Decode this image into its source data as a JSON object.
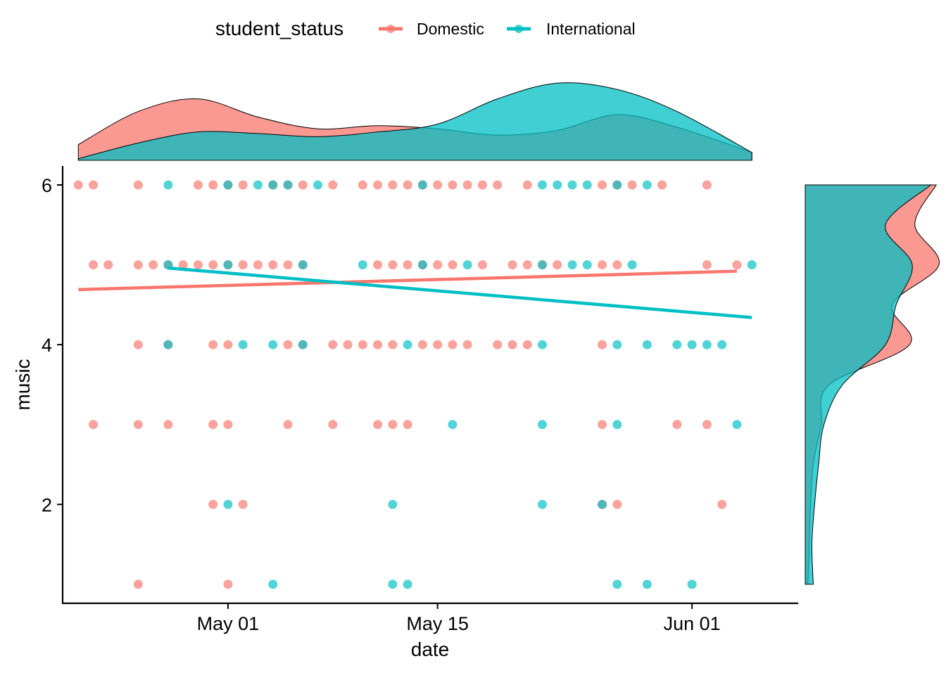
{
  "chart_data": {
    "type": "scatter",
    "xlabel": "date",
    "ylabel": "music",
    "x_ticks": [
      "May 01",
      "May 15",
      "Jun 01"
    ],
    "x_tick_dates": [
      "2021-05-01",
      "2021-05-15",
      "2021-06-01"
    ],
    "xlim": [
      "2021-04-20",
      "2021-06-08"
    ],
    "y_ticks": [
      2,
      4,
      6
    ],
    "ylim": [
      0.75,
      6.25
    ],
    "grid": false,
    "legend": {
      "title": "student_status",
      "position": "top",
      "entries": [
        "Domestic",
        "International"
      ]
    },
    "colors": {
      "Domestic": "#F8766D",
      "International": "#00BFC4"
    },
    "series": [
      {
        "name": "Domestic",
        "points": [
          [
            "2021-04-21",
            6
          ],
          [
            "2021-04-22",
            6
          ],
          [
            "2021-04-25",
            6
          ],
          [
            "2021-04-29",
            6
          ],
          [
            "2021-04-30",
            6
          ],
          [
            "2021-05-01",
            6
          ],
          [
            "2021-05-02",
            6
          ],
          [
            "2021-05-04",
            6
          ],
          [
            "2021-05-05",
            6
          ],
          [
            "2021-05-06",
            6
          ],
          [
            "2021-05-08",
            6
          ],
          [
            "2021-05-10",
            6
          ],
          [
            "2021-05-11",
            6
          ],
          [
            "2021-05-12",
            6
          ],
          [
            "2021-05-13",
            6
          ],
          [
            "2021-05-14",
            6
          ],
          [
            "2021-05-15",
            6
          ],
          [
            "2021-05-16",
            6
          ],
          [
            "2021-05-17",
            6
          ],
          [
            "2021-05-18",
            6
          ],
          [
            "2021-05-19",
            6
          ],
          [
            "2021-05-21",
            6
          ],
          [
            "2021-05-26",
            6
          ],
          [
            "2021-05-27",
            6
          ],
          [
            "2021-05-28",
            6
          ],
          [
            "2021-05-30",
            6
          ],
          [
            "2021-06-02",
            6
          ],
          [
            "2021-04-22",
            5
          ],
          [
            "2021-04-23",
            5
          ],
          [
            "2021-04-25",
            5
          ],
          [
            "2021-04-26",
            5
          ],
          [
            "2021-04-27",
            5
          ],
          [
            "2021-04-28",
            5
          ],
          [
            "2021-04-29",
            5
          ],
          [
            "2021-04-30",
            5
          ],
          [
            "2021-05-01",
            5
          ],
          [
            "2021-05-02",
            5
          ],
          [
            "2021-05-03",
            5
          ],
          [
            "2021-05-04",
            5
          ],
          [
            "2021-05-05",
            5
          ],
          [
            "2021-05-06",
            5
          ],
          [
            "2021-05-11",
            5
          ],
          [
            "2021-05-12",
            5
          ],
          [
            "2021-05-13",
            5
          ],
          [
            "2021-05-14",
            5
          ],
          [
            "2021-05-15",
            5
          ],
          [
            "2021-05-16",
            5
          ],
          [
            "2021-05-18",
            5
          ],
          [
            "2021-05-20",
            5
          ],
          [
            "2021-05-21",
            5
          ],
          [
            "2021-05-22",
            5
          ],
          [
            "2021-05-23",
            5
          ],
          [
            "2021-05-26",
            5
          ],
          [
            "2021-05-27",
            5
          ],
          [
            "2021-06-02",
            5
          ],
          [
            "2021-06-04",
            5
          ],
          [
            "2021-04-25",
            4
          ],
          [
            "2021-04-27",
            4
          ],
          [
            "2021-04-30",
            4
          ],
          [
            "2021-05-01",
            4
          ],
          [
            "2021-05-05",
            4
          ],
          [
            "2021-05-06",
            4
          ],
          [
            "2021-05-08",
            4
          ],
          [
            "2021-05-09",
            4
          ],
          [
            "2021-05-10",
            4
          ],
          [
            "2021-05-11",
            4
          ],
          [
            "2021-05-12",
            4
          ],
          [
            "2021-05-14",
            4
          ],
          [
            "2021-05-15",
            4
          ],
          [
            "2021-05-16",
            4
          ],
          [
            "2021-05-17",
            4
          ],
          [
            "2021-05-19",
            4
          ],
          [
            "2021-05-20",
            4
          ],
          [
            "2021-05-21",
            4
          ],
          [
            "2021-05-26",
            4
          ],
          [
            "2021-04-22",
            3
          ],
          [
            "2021-04-25",
            3
          ],
          [
            "2021-04-27",
            3
          ],
          [
            "2021-04-30",
            3
          ],
          [
            "2021-05-01",
            3
          ],
          [
            "2021-05-05",
            3
          ],
          [
            "2021-05-08",
            3
          ],
          [
            "2021-05-11",
            3
          ],
          [
            "2021-05-12",
            3
          ],
          [
            "2021-05-13",
            3
          ],
          [
            "2021-05-26",
            3
          ],
          [
            "2021-05-31",
            3
          ],
          [
            "2021-06-02",
            3
          ],
          [
            "2021-04-30",
            2
          ],
          [
            "2021-05-02",
            2
          ],
          [
            "2021-05-26",
            2
          ],
          [
            "2021-05-27",
            2
          ],
          [
            "2021-06-03",
            2
          ],
          [
            "2021-04-25",
            1
          ],
          [
            "2021-05-01",
            1
          ]
        ]
      },
      {
        "name": "International",
        "points": [
          [
            "2021-04-27",
            6
          ],
          [
            "2021-05-01",
            6
          ],
          [
            "2021-05-03",
            6
          ],
          [
            "2021-05-04",
            6
          ],
          [
            "2021-05-05",
            6
          ],
          [
            "2021-05-07",
            6
          ],
          [
            "2021-05-14",
            6
          ],
          [
            "2021-05-22",
            6
          ],
          [
            "2021-05-23",
            6
          ],
          [
            "2021-05-24",
            6
          ],
          [
            "2021-05-25",
            6
          ],
          [
            "2021-05-27",
            6
          ],
          [
            "2021-05-29",
            6
          ],
          [
            "2021-04-27",
            5
          ],
          [
            "2021-05-01",
            5
          ],
          [
            "2021-05-06",
            5
          ],
          [
            "2021-05-10",
            5
          ],
          [
            "2021-05-14",
            5
          ],
          [
            "2021-05-17",
            5
          ],
          [
            "2021-05-22",
            5
          ],
          [
            "2021-05-24",
            5
          ],
          [
            "2021-05-25",
            5
          ],
          [
            "2021-05-28",
            5
          ],
          [
            "2021-06-05",
            5
          ],
          [
            "2021-04-27",
            4
          ],
          [
            "2021-05-02",
            4
          ],
          [
            "2021-05-04",
            4
          ],
          [
            "2021-05-06",
            4
          ],
          [
            "2021-05-13",
            4
          ],
          [
            "2021-05-22",
            4
          ],
          [
            "2021-05-27",
            4
          ],
          [
            "2021-05-29",
            4
          ],
          [
            "2021-05-31",
            4
          ],
          [
            "2021-06-01",
            4
          ],
          [
            "2021-06-02",
            4
          ],
          [
            "2021-06-03",
            4
          ],
          [
            "2021-05-16",
            3
          ],
          [
            "2021-05-22",
            3
          ],
          [
            "2021-05-27",
            3
          ],
          [
            "2021-06-04",
            3
          ],
          [
            "2021-05-01",
            2
          ],
          [
            "2021-05-12",
            2
          ],
          [
            "2021-05-22",
            2
          ],
          [
            "2021-05-26",
            2
          ],
          [
            "2021-05-04",
            1
          ],
          [
            "2021-05-12",
            1
          ],
          [
            "2021-05-13",
            1
          ],
          [
            "2021-05-27",
            1
          ],
          [
            "2021-05-29",
            1
          ],
          [
            "2021-06-01",
            1
          ]
        ]
      }
    ],
    "trend_lines": [
      {
        "name": "Domestic",
        "from": [
          "2021-04-21",
          4.69
        ],
        "to": [
          "2021-06-04",
          4.92
        ]
      },
      {
        "name": "International",
        "from": [
          "2021-04-27",
          4.96
        ],
        "to": [
          "2021-06-05",
          4.34
        ]
      }
    ],
    "marginal_x_density": {
      "x": [
        "2021-04-21",
        "2021-04-25",
        "2021-04-29",
        "2021-05-03",
        "2021-05-07",
        "2021-05-11",
        "2021-05-15",
        "2021-05-19",
        "2021-05-23",
        "2021-05-27",
        "2021-05-31",
        "2021-06-05"
      ],
      "Domestic": [
        0.2,
        0.62,
        0.78,
        0.55,
        0.4,
        0.44,
        0.4,
        0.32,
        0.38,
        0.58,
        0.42,
        0.1
      ],
      "International": [
        0.02,
        0.22,
        0.36,
        0.34,
        0.3,
        0.36,
        0.46,
        0.78,
        0.98,
        0.9,
        0.62,
        0.1
      ]
    },
    "marginal_y_density": {
      "y": [
        1,
        1.5,
        2,
        2.5,
        3,
        3.5,
        4,
        4.5,
        5,
        5.5,
        6
      ],
      "Domestic": [
        0.02,
        0.03,
        0.04,
        0.06,
        0.12,
        0.18,
        0.78,
        0.65,
        1.0,
        0.82,
        0.98
      ],
      "International": [
        0.06,
        0.05,
        0.07,
        0.1,
        0.14,
        0.28,
        0.6,
        0.68,
        0.8,
        0.6,
        0.94
      ]
    }
  }
}
